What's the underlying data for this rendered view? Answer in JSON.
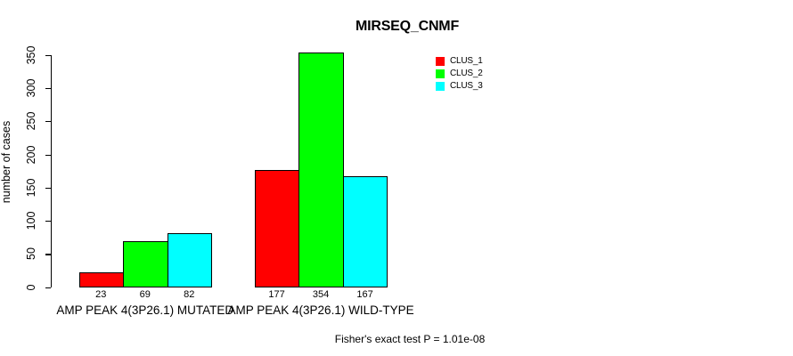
{
  "chart": {
    "title": "MIRSEQ_CNMF",
    "ylabel": "number of cases",
    "footer": "Fisher's exact test P = 1.01e-08"
  },
  "chart_data": {
    "type": "bar",
    "title": "MIRSEQ_CNMF",
    "xlabel": "",
    "ylabel": "number of cases",
    "ylim": [
      0,
      350
    ],
    "yticks": [
      0,
      50,
      100,
      150,
      200,
      250,
      300,
      350
    ],
    "grid": false,
    "categories": [
      "AMP PEAK 4(3P26.1) MUTATED",
      "AMP PEAK 4(3P26.1) WILD-TYPE"
    ],
    "series": [
      {
        "name": "CLUS_1",
        "color": "#ff0000",
        "values": [
          23,
          177
        ]
      },
      {
        "name": "CLUS_2",
        "color": "#00ff00",
        "values": [
          69,
          354
        ]
      },
      {
        "name": "CLUS_3",
        "color": "#00ffff",
        "values": [
          82,
          167
        ]
      }
    ],
    "show_bar_values": true,
    "legend": {
      "position": "top-right",
      "entries": [
        "CLUS_1",
        "CLUS_2",
        "CLUS_3"
      ]
    },
    "annotation": "Fisher's exact test P = 1.01e-08"
  }
}
